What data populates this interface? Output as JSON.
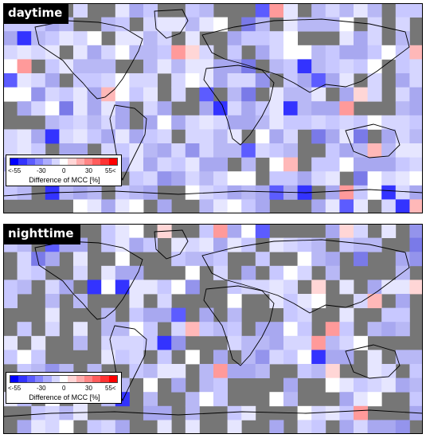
{
  "panels": [
    {
      "id": "top",
      "title": "daytime"
    },
    {
      "id": "bottom",
      "title": "nighttime"
    }
  ],
  "legend": {
    "tick_labels": [
      "<-55",
      "-30",
      "0",
      "30",
      "55<"
    ],
    "label": "Difference of MCC [%]",
    "colors": [
      "#0000ff",
      "#3333ff",
      "#5c5cff",
      "#8585ff",
      "#adadff",
      "#d6d6ff",
      "#ffffff",
      "#ffd6d6",
      "#ffadad",
      "#ff8585",
      "#ff5c5c",
      "#ff3333",
      "#ff0000"
    ]
  },
  "colors": {
    "no_data": "#767676",
    "coast": "#000000",
    "frame": "#000000"
  }
}
